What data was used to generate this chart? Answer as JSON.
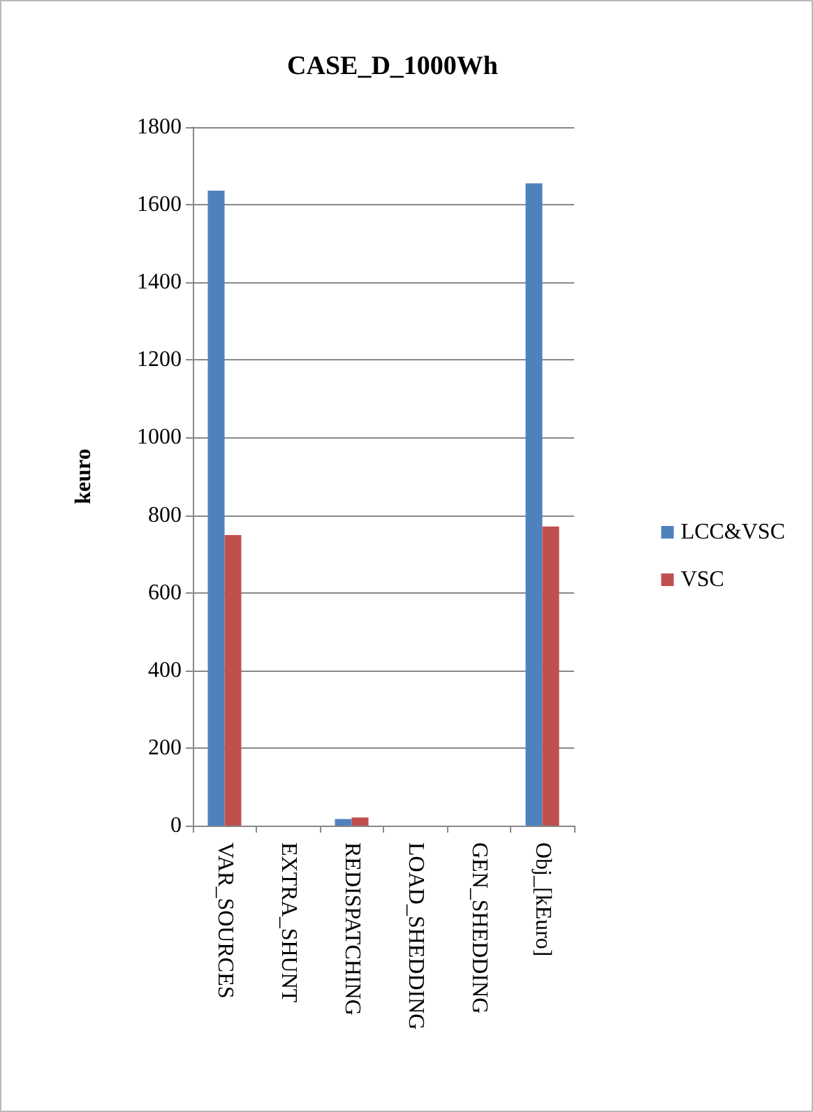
{
  "chart_data": {
    "type": "bar",
    "title": "CASE_D_1000Wh",
    "ylabel": "keuro",
    "categories": [
      "VAR_SOURCES",
      "EXTRA_SHUNT",
      "REDISPATCHING",
      "LOAD_SHEDDING",
      "GEN_SHEDDING",
      "Obj_[kEuro]"
    ],
    "series": [
      {
        "name": "LCC&VSC",
        "color": "#4f81bd",
        "values": [
          1636,
          0,
          17,
          0,
          0,
          1655
        ]
      },
      {
        "name": "VSC",
        "color": "#c0504d",
        "values": [
          749,
          0,
          21,
          0,
          0,
          771
        ]
      }
    ],
    "ylim": [
      0,
      1800
    ],
    "yticks": [
      0,
      200,
      400,
      600,
      800,
      1000,
      1200,
      1400,
      1600,
      1800
    ],
    "grid": "y",
    "legend": "right"
  }
}
